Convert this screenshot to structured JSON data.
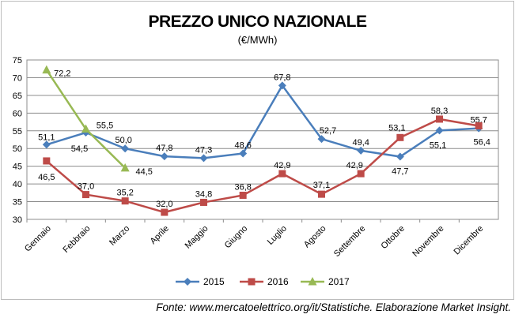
{
  "chart_data": {
    "type": "line",
    "title": "PREZZO UNICO NAZIONALE",
    "subtitle": "(€/MWh)",
    "categories": [
      "Gennaio",
      "Febbraio",
      "Marzo",
      "Aprile",
      "Maggio",
      "Giugno",
      "Luglio",
      "Agosto",
      "Settembre",
      "Ottobre",
      "Novembre",
      "Dicembre"
    ],
    "ylim": [
      30,
      75
    ],
    "yticks": [
      30,
      35,
      40,
      45,
      50,
      55,
      60,
      65,
      70,
      75
    ],
    "grid": true,
    "legend_position": "bottom",
    "series": [
      {
        "name": "2015",
        "color": "#4a7ebb",
        "marker": "diamond",
        "values": [
          51.1,
          54.5,
          50.0,
          47.8,
          47.3,
          48.6,
          67.8,
          52.7,
          49.4,
          47.7,
          55.1,
          55.7
        ],
        "labels": [
          "51,1",
          "54,5",
          "50,0",
          "47,8",
          "47,3",
          "48,6",
          "67,8",
          "52,7",
          "49,4",
          "47,7",
          "55,1",
          "55,7"
        ]
      },
      {
        "name": "2016",
        "color": "#be4b48",
        "marker": "square",
        "values": [
          46.5,
          37.0,
          35.2,
          32.0,
          34.8,
          36.8,
          42.9,
          37.1,
          42.9,
          53.1,
          58.3,
          56.4
        ],
        "labels": [
          "46,5",
          "37,0",
          "35,2",
          "32,0",
          "34,8",
          "36,8",
          "42,9",
          "37,1",
          "42,9",
          "53,1",
          "58,3",
          "56,4"
        ]
      },
      {
        "name": "2017",
        "color": "#98b954",
        "marker": "triangle",
        "values": [
          72.2,
          55.5,
          44.5,
          null,
          null,
          null,
          null,
          null,
          null,
          null,
          null,
          null
        ],
        "labels": [
          "72,2",
          "55,5",
          "44,5"
        ]
      }
    ]
  },
  "source_note": "Fonte: www.mercatoelettrico.org/it/Statistiche. Elaborazione Market Insight."
}
